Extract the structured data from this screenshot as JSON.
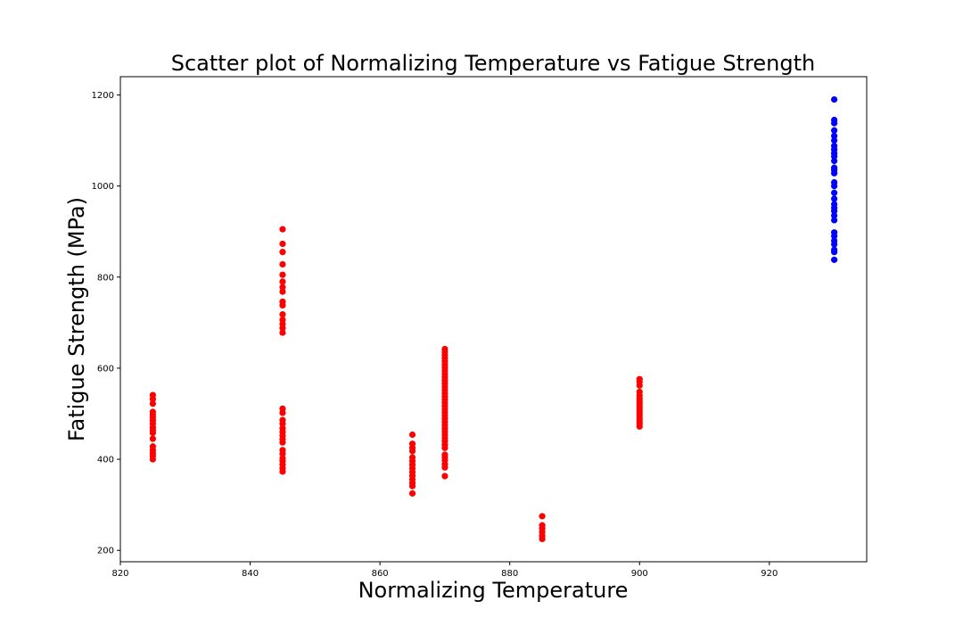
{
  "chart_data": {
    "type": "scatter",
    "title": "Scatter plot of Normalizing Temperature vs Fatigue Strength",
    "xlabel": "Normalizing Temperature",
    "ylabel": "Fatigue Strength (MPa)",
    "xlim": [
      820,
      935
    ],
    "ylim": [
      175,
      1240
    ],
    "xticks": [
      820,
      840,
      860,
      880,
      900,
      920
    ],
    "yticks": [
      200,
      400,
      600,
      800,
      1000,
      1200
    ],
    "grid": false,
    "legend": "none",
    "colors": {
      "red": "#ff0000",
      "blue": "#0000ff"
    },
    "series": [
      {
        "color": "#ff0000",
        "points": [
          {
            "x": 825,
            "y": 400
          },
          {
            "x": 825,
            "y": 407
          },
          {
            "x": 825,
            "y": 413
          },
          {
            "x": 825,
            "y": 420
          },
          {
            "x": 825,
            "y": 428
          },
          {
            "x": 825,
            "y": 445
          },
          {
            "x": 825,
            "y": 458
          },
          {
            "x": 825,
            "y": 464
          },
          {
            "x": 825,
            "y": 470
          },
          {
            "x": 825,
            "y": 478
          },
          {
            "x": 825,
            "y": 485
          },
          {
            "x": 825,
            "y": 492
          },
          {
            "x": 825,
            "y": 498
          },
          {
            "x": 825,
            "y": 504
          },
          {
            "x": 825,
            "y": 522
          },
          {
            "x": 825,
            "y": 532
          },
          {
            "x": 825,
            "y": 541
          },
          {
            "x": 845,
            "y": 373
          },
          {
            "x": 845,
            "y": 380
          },
          {
            "x": 845,
            "y": 388
          },
          {
            "x": 845,
            "y": 396
          },
          {
            "x": 845,
            "y": 402
          },
          {
            "x": 845,
            "y": 412
          },
          {
            "x": 845,
            "y": 420
          },
          {
            "x": 845,
            "y": 437
          },
          {
            "x": 845,
            "y": 444
          },
          {
            "x": 845,
            "y": 452
          },
          {
            "x": 845,
            "y": 460
          },
          {
            "x": 845,
            "y": 468
          },
          {
            "x": 845,
            "y": 478
          },
          {
            "x": 845,
            "y": 486
          },
          {
            "x": 845,
            "y": 502
          },
          {
            "x": 845,
            "y": 511
          },
          {
            "x": 845,
            "y": 678
          },
          {
            "x": 845,
            "y": 688
          },
          {
            "x": 845,
            "y": 697
          },
          {
            "x": 845,
            "y": 706
          },
          {
            "x": 845,
            "y": 718
          },
          {
            "x": 845,
            "y": 738
          },
          {
            "x": 845,
            "y": 746
          },
          {
            "x": 845,
            "y": 768
          },
          {
            "x": 845,
            "y": 778
          },
          {
            "x": 845,
            "y": 790
          },
          {
            "x": 845,
            "y": 805
          },
          {
            "x": 845,
            "y": 828
          },
          {
            "x": 845,
            "y": 855
          },
          {
            "x": 845,
            "y": 873
          },
          {
            "x": 845,
            "y": 905
          },
          {
            "x": 865,
            "y": 325
          },
          {
            "x": 865,
            "y": 341
          },
          {
            "x": 865,
            "y": 348
          },
          {
            "x": 865,
            "y": 356
          },
          {
            "x": 865,
            "y": 364
          },
          {
            "x": 865,
            "y": 372
          },
          {
            "x": 865,
            "y": 380
          },
          {
            "x": 865,
            "y": 388
          },
          {
            "x": 865,
            "y": 396
          },
          {
            "x": 865,
            "y": 404
          },
          {
            "x": 865,
            "y": 418
          },
          {
            "x": 865,
            "y": 425
          },
          {
            "x": 865,
            "y": 434
          },
          {
            "x": 865,
            "y": 454
          },
          {
            "x": 870,
            "y": 363
          },
          {
            "x": 870,
            "y": 382
          },
          {
            "x": 870,
            "y": 389
          },
          {
            "x": 870,
            "y": 398
          },
          {
            "x": 870,
            "y": 404
          },
          {
            "x": 870,
            "y": 410
          },
          {
            "x": 870,
            "y": 425
          },
          {
            "x": 870,
            "y": 432
          },
          {
            "x": 870,
            "y": 440
          },
          {
            "x": 870,
            "y": 447
          },
          {
            "x": 870,
            "y": 454
          },
          {
            "x": 870,
            "y": 461
          },
          {
            "x": 870,
            "y": 468
          },
          {
            "x": 870,
            "y": 475
          },
          {
            "x": 870,
            "y": 482
          },
          {
            "x": 870,
            "y": 489
          },
          {
            "x": 870,
            "y": 496
          },
          {
            "x": 870,
            "y": 503
          },
          {
            "x": 870,
            "y": 510
          },
          {
            "x": 870,
            "y": 517
          },
          {
            "x": 870,
            "y": 524
          },
          {
            "x": 870,
            "y": 531
          },
          {
            "x": 870,
            "y": 538
          },
          {
            "x": 870,
            "y": 545
          },
          {
            "x": 870,
            "y": 552
          },
          {
            "x": 870,
            "y": 559
          },
          {
            "x": 870,
            "y": 566
          },
          {
            "x": 870,
            "y": 573
          },
          {
            "x": 870,
            "y": 580
          },
          {
            "x": 870,
            "y": 587
          },
          {
            "x": 870,
            "y": 594
          },
          {
            "x": 870,
            "y": 601
          },
          {
            "x": 870,
            "y": 608
          },
          {
            "x": 870,
            "y": 615
          },
          {
            "x": 870,
            "y": 622
          },
          {
            "x": 870,
            "y": 629
          },
          {
            "x": 870,
            "y": 636
          },
          {
            "x": 870,
            "y": 642
          },
          {
            "x": 885,
            "y": 225
          },
          {
            "x": 885,
            "y": 232
          },
          {
            "x": 885,
            "y": 240
          },
          {
            "x": 885,
            "y": 248
          },
          {
            "x": 885,
            "y": 255
          },
          {
            "x": 885,
            "y": 275
          },
          {
            "x": 900,
            "y": 472
          },
          {
            "x": 900,
            "y": 478
          },
          {
            "x": 900,
            "y": 484
          },
          {
            "x": 900,
            "y": 490
          },
          {
            "x": 900,
            "y": 496
          },
          {
            "x": 900,
            "y": 502
          },
          {
            "x": 900,
            "y": 508
          },
          {
            "x": 900,
            "y": 514
          },
          {
            "x": 900,
            "y": 520
          },
          {
            "x": 900,
            "y": 526
          },
          {
            "x": 900,
            "y": 533
          },
          {
            "x": 900,
            "y": 540
          },
          {
            "x": 900,
            "y": 548
          },
          {
            "x": 900,
            "y": 562
          },
          {
            "x": 900,
            "y": 570
          },
          {
            "x": 900,
            "y": 576
          }
        ]
      },
      {
        "color": "#0000ff",
        "points": [
          {
            "x": 930,
            "y": 838
          },
          {
            "x": 930,
            "y": 855
          },
          {
            "x": 930,
            "y": 860
          },
          {
            "x": 930,
            "y": 872
          },
          {
            "x": 930,
            "y": 880
          },
          {
            "x": 930,
            "y": 890
          },
          {
            "x": 930,
            "y": 898
          },
          {
            "x": 930,
            "y": 925
          },
          {
            "x": 930,
            "y": 935
          },
          {
            "x": 930,
            "y": 945
          },
          {
            "x": 930,
            "y": 952
          },
          {
            "x": 930,
            "y": 960
          },
          {
            "x": 930,
            "y": 972
          },
          {
            "x": 930,
            "y": 985
          },
          {
            "x": 930,
            "y": 1000
          },
          {
            "x": 930,
            "y": 1008
          },
          {
            "x": 930,
            "y": 1028
          },
          {
            "x": 930,
            "y": 1035
          },
          {
            "x": 930,
            "y": 1040
          },
          {
            "x": 930,
            "y": 1055
          },
          {
            "x": 930,
            "y": 1065
          },
          {
            "x": 930,
            "y": 1072
          },
          {
            "x": 930,
            "y": 1080
          },
          {
            "x": 930,
            "y": 1088
          },
          {
            "x": 930,
            "y": 1100
          },
          {
            "x": 930,
            "y": 1110
          },
          {
            "x": 930,
            "y": 1122
          },
          {
            "x": 930,
            "y": 1138
          },
          {
            "x": 930,
            "y": 1145
          },
          {
            "x": 930,
            "y": 1190
          }
        ]
      }
    ]
  }
}
